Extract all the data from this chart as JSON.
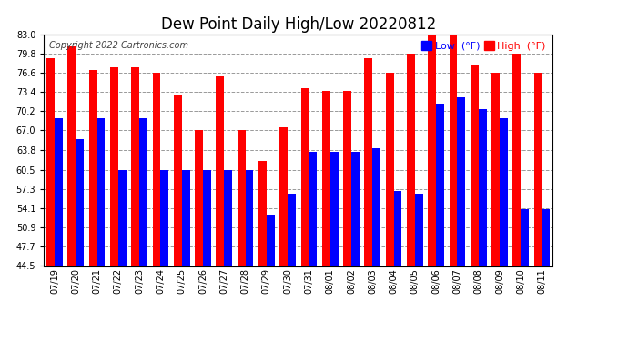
{
  "title": "Dew Point Daily High/Low 20220812",
  "copyright": "Copyright 2022 Cartronics.com",
  "dates": [
    "07/19",
    "07/20",
    "07/21",
    "07/22",
    "07/23",
    "07/24",
    "07/25",
    "07/26",
    "07/27",
    "07/28",
    "07/29",
    "07/30",
    "07/31",
    "08/01",
    "08/02",
    "08/03",
    "08/04",
    "08/05",
    "08/06",
    "08/07",
    "08/08",
    "08/09",
    "08/10",
    "08/11"
  ],
  "highs": [
    79.0,
    81.0,
    77.0,
    77.5,
    77.5,
    76.6,
    73.0,
    67.0,
    76.0,
    67.0,
    62.0,
    67.5,
    74.0,
    73.5,
    73.5,
    79.0,
    76.6,
    79.8,
    83.0,
    83.0,
    77.8,
    76.6,
    79.8,
    76.6
  ],
  "lows": [
    69.0,
    65.5,
    69.0,
    60.5,
    69.0,
    60.5,
    60.5,
    60.5,
    60.5,
    60.5,
    53.0,
    56.5,
    63.5,
    63.5,
    63.5,
    64.0,
    57.0,
    56.5,
    71.5,
    72.5,
    70.5,
    69.0,
    54.0,
    54.0
  ],
  "ylim": [
    44.5,
    83.0
  ],
  "yticks": [
    44.5,
    47.7,
    50.9,
    54.1,
    57.3,
    60.5,
    63.8,
    67.0,
    70.2,
    73.4,
    76.6,
    79.8,
    83.0
  ],
  "bar_width": 0.38,
  "high_color": "#ff0000",
  "low_color": "#0000ff",
  "bg_color": "#ffffff",
  "grid_color": "#999999",
  "title_fontsize": 12,
  "tick_fontsize": 7,
  "legend_low_label": "Low  (°F)",
  "legend_high_label": "High  (°F)"
}
